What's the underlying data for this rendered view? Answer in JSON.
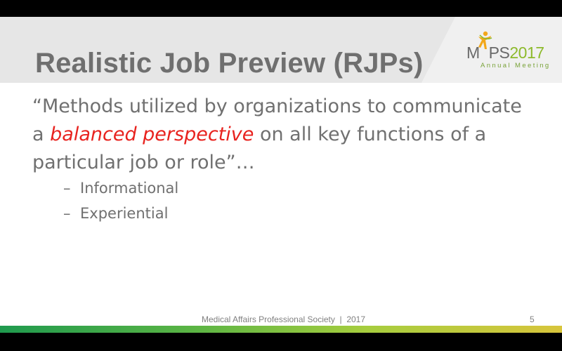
{
  "slide": {
    "title": "Realistic Job Preview (RJPs)",
    "logo": {
      "word_prefix": "M",
      "word_middle": "PS",
      "year": "2017",
      "subtitle": "Annual Meeting",
      "brand_green": "#8dba2c",
      "figure_orange": "#f2a71b"
    },
    "quote": {
      "before": "“Methods utilized by organizations to communicate a ",
      "highlight": "balanced perspective",
      "after": " on all key functions of a particular job or role”…"
    },
    "bullets": [
      {
        "dash": "–",
        "text": "Informational"
      },
      {
        "dash": "–",
        "text": "Experiential"
      }
    ],
    "footer": "Medical Affairs Professional Society  |  2017",
    "page_number": "5",
    "colors": {
      "title_gray": "#6f6f6f",
      "text_gray": "#707070",
      "highlight_red": "#e8231f",
      "band_gray": "#e6e6e6"
    }
  }
}
